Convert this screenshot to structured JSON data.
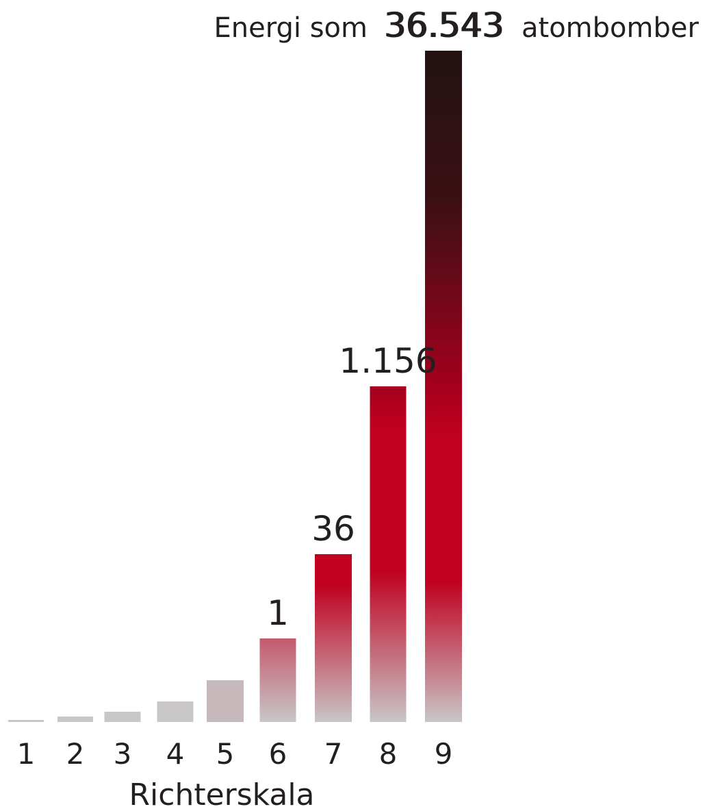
{
  "chart_data": {
    "type": "bar",
    "title_prefix": "Energi som",
    "title_value": "36.543",
    "title_suffix": "atombomber",
    "xlabel": "Richterskala",
    "ylabel": "",
    "categories": [
      "1",
      "2",
      "3",
      "4",
      "5",
      "6",
      "7",
      "8",
      "9"
    ],
    "values": [
      0.001,
      0.003,
      0.004,
      0.008,
      0.016,
      1,
      36,
      1156,
      36543
    ],
    "value_labels": [
      "",
      "",
      "",
      "",
      "",
      "1",
      "36",
      "1.156",
      "36.543"
    ],
    "display_scale": "non-linear (visual emphasis)",
    "grid": false,
    "legend": "none",
    "colors": {
      "gray": "#c8c6c7",
      "red": "#c0001f",
      "dark": "#231213",
      "text": "#231f20"
    }
  }
}
